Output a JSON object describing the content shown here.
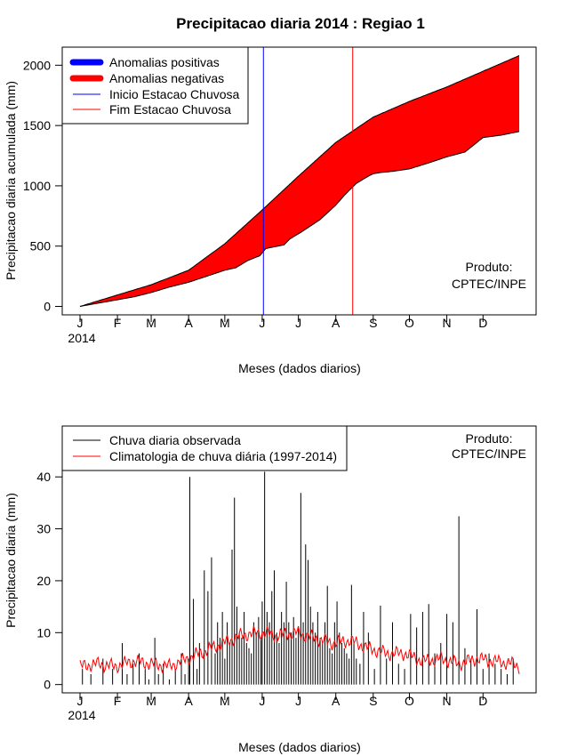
{
  "chart_data": [
    {
      "type": "area",
      "title": "Precipitacao diaria 2014 : Regiao 1",
      "xlabel": "Meses (dados diarios)",
      "ylabel": "Precipitacao diaria acumulada (mm)",
      "year_label": "2014",
      "month_ticks": [
        "J",
        "F",
        "M",
        "A",
        "M",
        "J",
        "J",
        "A",
        "S",
        "O",
        "N",
        "D"
      ],
      "month_start_days": [
        1,
        32,
        60,
        91,
        121,
        152,
        182,
        213,
        244,
        274,
        305,
        335
      ],
      "xlim": [
        1,
        365
      ],
      "ylim": [
        -70,
        2150
      ],
      "y_ticks": [
        0,
        500,
        1000,
        1500,
        2000
      ],
      "legend_position": "top-left",
      "legend": [
        "Anomalias positivas",
        "Anomalias negativas",
        "Inicio Estacao Chuvosa",
        "Fim Estacao Chuvosa"
      ],
      "product_label": [
        "Produto:",
        "CPTEC/INPE"
      ],
      "rainy_season_start_day": 153,
      "rainy_season_end_day": 227,
      "series": [
        {
          "name": "Climatologia acumulada",
          "color": "#000000",
          "days": [
            1,
            32,
            60,
            91,
            121,
            152,
            182,
            213,
            244,
            274,
            305,
            335,
            365
          ],
          "values": [
            0,
            95,
            180,
            300,
            520,
            800,
            1080,
            1360,
            1570,
            1700,
            1820,
            1950,
            2080
          ]
        },
        {
          "name": "Observado acumulado",
          "color": "#000000",
          "days": [
            1,
            15,
            32,
            46,
            60,
            75,
            91,
            106,
            121,
            130,
            140,
            150,
            155,
            170,
            175,
            185,
            200,
            213,
            220,
            230,
            240,
            244,
            250,
            260,
            274,
            290,
            305,
            320,
            335,
            350,
            365
          ],
          "values": [
            0,
            25,
            55,
            80,
            115,
            160,
            200,
            250,
            300,
            320,
            380,
            420,
            480,
            510,
            560,
            620,
            720,
            840,
            920,
            1020,
            1080,
            1100,
            1110,
            1120,
            1140,
            1190,
            1240,
            1280,
            1400,
            1420,
            1450
          ]
        }
      ],
      "anomaly_fill": {
        "negative": "#ff0000",
        "positive": "#0000ff"
      }
    },
    {
      "type": "bar",
      "xlabel": "Meses (dados diarios)",
      "ylabel": "Precipitacao diaria (mm)",
      "year_label": "2014",
      "month_ticks": [
        "J",
        "F",
        "M",
        "A",
        "M",
        "J",
        "J",
        "A",
        "S",
        "O",
        "N",
        "D"
      ],
      "month_start_days": [
        1,
        32,
        60,
        91,
        121,
        152,
        182,
        213,
        244,
        274,
        305,
        335
      ],
      "xlim": [
        1,
        365
      ],
      "ylim": [
        -1.6,
        49.8
      ],
      "y_ticks": [
        0,
        10,
        20,
        30,
        40
      ],
      "legend_position": "top-left",
      "legend": [
        "Chuva diaria observada",
        "Climatologia de chuva diária (1997-2014)"
      ],
      "product_label": [
        "Produto:",
        "CPTEC/INPE"
      ],
      "series": [
        {
          "name": "Chuva diaria observada",
          "color": "#000000",
          "days": [
            3,
            10,
            20,
            28,
            36,
            40,
            45,
            50,
            55,
            58,
            63,
            66,
            70,
            75,
            80,
            85,
            88,
            91,
            92,
            95,
            98,
            100,
            104,
            107,
            110,
            113,
            115,
            117,
            119,
            121,
            123,
            125,
            127,
            129,
            131,
            133,
            135,
            137,
            139,
            141,
            143,
            145,
            147,
            149,
            151,
            152,
            154,
            156,
            158,
            160,
            162,
            164,
            166,
            168,
            170,
            172,
            174,
            176,
            178,
            180,
            182,
            184,
            186,
            188,
            190,
            192,
            194,
            196,
            198,
            200,
            202,
            204,
            206,
            208,
            210,
            212,
            214,
            216,
            218,
            220,
            222,
            224,
            226,
            228,
            230,
            233,
            236,
            240,
            245,
            250,
            255,
            260,
            265,
            270,
            275,
            280,
            285,
            290,
            295,
            300,
            305,
            310,
            315,
            320,
            325,
            330,
            335,
            340,
            345,
            350,
            355,
            360
          ],
          "values": [
            3,
            2,
            5,
            3,
            8,
            2,
            4,
            6,
            3,
            1,
            9,
            2,
            4,
            1,
            3,
            6,
            2,
            5,
            40,
            16.5,
            3,
            8,
            22,
            18,
            24.5,
            6,
            12,
            9,
            14,
            5,
            12,
            8,
            26,
            36,
            15,
            10,
            9,
            14,
            8,
            7,
            6,
            12,
            10,
            13,
            9,
            16,
            41,
            14,
            12,
            18,
            22,
            10,
            8,
            14,
            12,
            19.8,
            12,
            10,
            13,
            9,
            11,
            36.9,
            12,
            27,
            24,
            15,
            12,
            10,
            14,
            9,
            8,
            12,
            19,
            7,
            6,
            12,
            16,
            10,
            8,
            7,
            6,
            5,
            19.2,
            8,
            5,
            4,
            14,
            10,
            3,
            15.2,
            5,
            12,
            4,
            3,
            13.6,
            11,
            14,
            15.5,
            6,
            8,
            13.6,
            12,
            32.4,
            7,
            5,
            14.5,
            3,
            6,
            4,
            3,
            2,
            5
          ]
        },
        {
          "name": "Climatologia de chuva diária (1997-2014)",
          "color": "#ff0000",
          "days": [
            1,
            15,
            30,
            45,
            60,
            75,
            90,
            105,
            120,
            135,
            150,
            165,
            180,
            195,
            210,
            225,
            240,
            255,
            270,
            285,
            300,
            315,
            330,
            345,
            360,
            365
          ],
          "values": [
            3.5,
            4,
            3.5,
            4.5,
            4,
            3.5,
            5,
            6.5,
            8,
            9.5,
            10,
            9.5,
            10,
            9,
            8,
            8.5,
            7,
            6,
            6,
            4.5,
            5,
            4,
            5,
            4.5,
            4,
            3.5
          ]
        }
      ]
    }
  ]
}
